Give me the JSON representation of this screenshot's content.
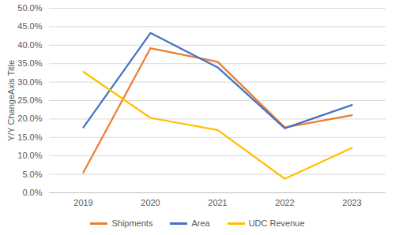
{
  "chart_data": {
    "type": "line",
    "y_label": "Y/Y ChangeAxis Title",
    "categories": [
      "2019",
      "2020",
      "2021",
      "2022",
      "2023"
    ],
    "series": [
      {
        "name": "Shipments",
        "color": "#ed7d31",
        "values": [
          5.5,
          39.2,
          35.5,
          17.7,
          21.0
        ]
      },
      {
        "name": "Area",
        "color": "#4472c4",
        "values": [
          17.7,
          43.3,
          34.0,
          17.5,
          23.8
        ]
      },
      {
        "name": "UDC Revenue",
        "color": "#ffc000",
        "values": [
          32.8,
          20.3,
          17.0,
          3.8,
          12.2
        ]
      }
    ],
    "ylim": [
      0,
      50
    ],
    "yticks": [
      {
        "value": 0,
        "label": "0.0%"
      },
      {
        "value": 5,
        "label": "5.0%"
      },
      {
        "value": 10,
        "label": "10.0%"
      },
      {
        "value": 15,
        "label": "15.0%"
      },
      {
        "value": 20,
        "label": "20.0%"
      },
      {
        "value": 25,
        "label": "25.0%"
      },
      {
        "value": 30,
        "label": "30.0%"
      },
      {
        "value": 35,
        "label": "35.0%"
      },
      {
        "value": 40,
        "label": "40.0%"
      },
      {
        "value": 45,
        "label": "45.0%"
      },
      {
        "value": 50,
        "label": "50.0%"
      }
    ],
    "grid": true,
    "legend": "bottom"
  }
}
